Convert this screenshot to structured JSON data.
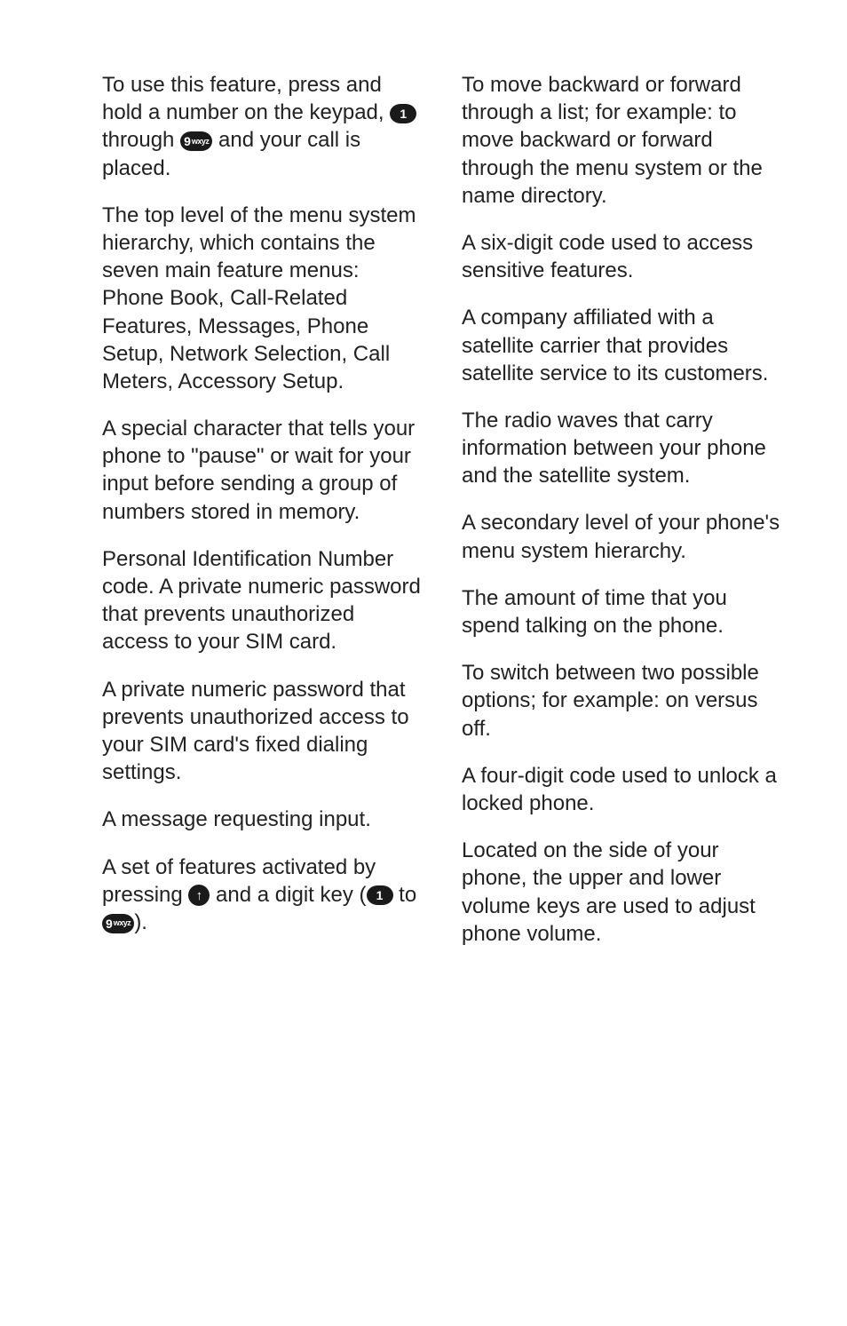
{
  "left": {
    "e1_def": " To use this feature, press and hold a number on the keypad, ",
    "e1_mid": " through ",
    "e1_def2": " and your call is placed.",
    "e2_def": " The top level of the menu system hierarchy, which contains the seven main feature menus: Phone Book, Call-Related Features, Messages, Phone Setup, Network Selection, Call Meters, Accessory Setup.",
    "p_def": " A special character that tells your phone to \"pause\" or wait for your input before sending a group of numbers stored in memory.",
    "pin_def": " Personal Identification Number code. A private numeric password that prevents unauthorized access to your SIM card.",
    "pin2_def": " A private numeric password that prevents unauthorized access to your SIM card's fixed dialing settings.",
    "prompt_def": " A message requesting input.",
    "qa_def": " A set of features activated by pressing ",
    "qa_mid": " and a digit key (",
    "qa_to": " to ",
    "qa_end": ")."
  },
  "right": {
    "scroll_def": " To move backward or forward through a list; for example: to move backward or forward through the menu system or the name directory.",
    "sec_def": " A six-digit code used to access sensitive features.",
    "sp_def": " A company affiliated with a satellite carrier that provides satellite service to its customers.",
    "signal_def": " The radio waves that carry information between your phone and the satellite system.",
    "submenu_def": " A secondary level of your phone's menu system hierarchy.",
    "talktime_def": " The amount of time that you spend talking on the phone.",
    "toggle_def": " To switch between two possible options; for example: on versus off.",
    "unlock_def": " A four-digit code used to unlock a locked phone.",
    "volume_def": " Located on the side of your phone, the upper and lower volume keys are used to adjust phone volume."
  },
  "keys": {
    "one": "1",
    "nine_main": "9",
    "nine_sub": "wxyz",
    "up_arrow": "↑"
  }
}
